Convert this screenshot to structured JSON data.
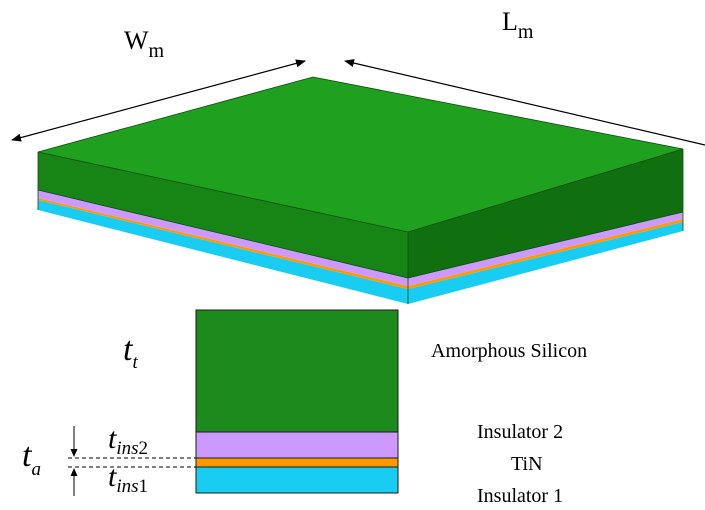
{
  "dimensions": {
    "width_label": {
      "main": "W",
      "sub": "m"
    },
    "length_label": {
      "main": "L",
      "sub": "m"
    }
  },
  "layers": [
    {
      "name": "Amorphous Silicon",
      "color": "#1c8a1c"
    },
    {
      "name": "Insulator 2",
      "color": "#cc99ff"
    },
    {
      "name": "TiN",
      "color": "#ff9900"
    },
    {
      "name": "Insulator 1",
      "color": "#19ccf2"
    }
  ],
  "thickness_labels": {
    "t_t": {
      "main": "t",
      "sub": "t"
    },
    "t_a": {
      "main": "t",
      "sub": "a"
    },
    "t_ins2": {
      "main": "t",
      "sub": "ins",
      "sub_num": "2"
    },
    "t_ins1": {
      "main": "t",
      "sub": "ins",
      "sub_num": "1"
    }
  },
  "colors": {
    "green_top": "#1fa01f",
    "green_front": "#168516",
    "green_side": "#107010"
  }
}
